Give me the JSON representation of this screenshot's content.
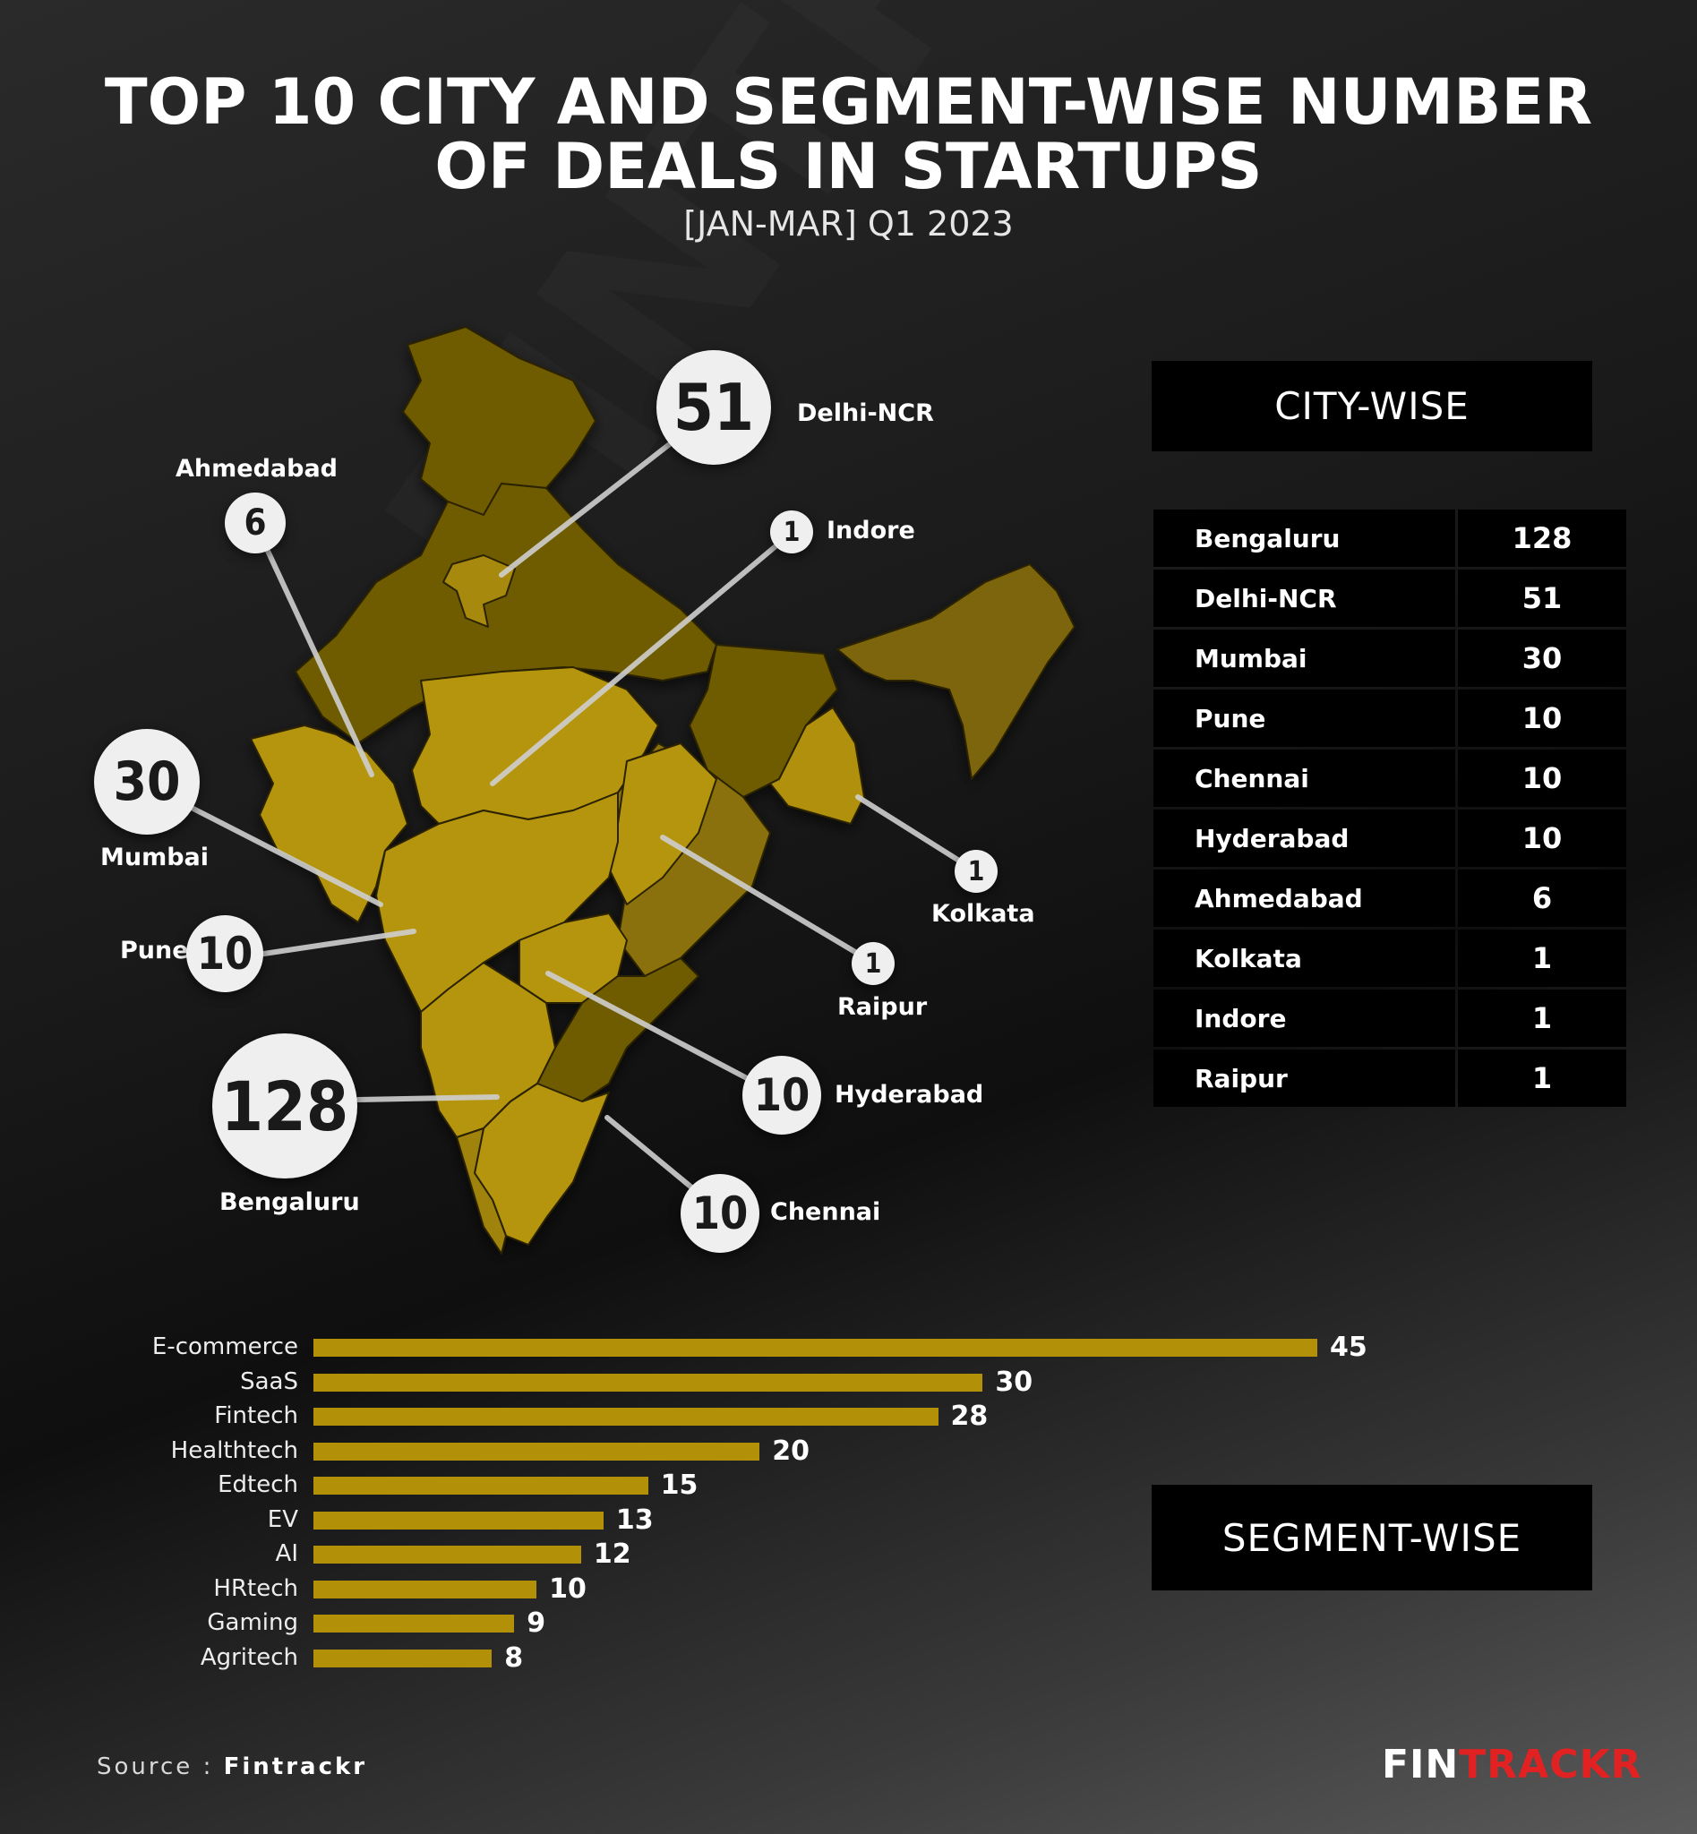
{
  "title_line1": "TOP 10 CITY AND SEGMENT-WISE NUMBER",
  "title_line2": "OF DEALS IN STARTUPS",
  "subtitle": "[JAN-MAR] Q1 2023",
  "city_header": "CITY-WISE",
  "segment_header": "SEGMENT-WISE",
  "source_prefix": "Source : ",
  "source_name": "Fintrackr",
  "logo_fin": "FIN",
  "logo_track": "TRACKR",
  "colors": {
    "accent": "#b29108",
    "logo_red": "#e22222",
    "box": "#000000"
  },
  "chart_data": [
    {
      "type": "map",
      "cities": [
        {
          "name": "Delhi-NCR",
          "value": 51
        },
        {
          "name": "Ahmedabad",
          "value": 6
        },
        {
          "name": "Indore",
          "value": 1
        },
        {
          "name": "Mumbai",
          "value": 30
        },
        {
          "name": "Pune",
          "value": 10
        },
        {
          "name": "Kolkata",
          "value": 1
        },
        {
          "name": "Raipur",
          "value": 1
        },
        {
          "name": "Bengaluru",
          "value": 128
        },
        {
          "name": "Hyderabad",
          "value": 10
        },
        {
          "name": "Chennai",
          "value": 10
        }
      ]
    },
    {
      "type": "table",
      "title": "CITY-WISE",
      "rows": [
        {
          "name": "Bengaluru",
          "value": "128"
        },
        {
          "name": "Delhi-NCR",
          "value": "51"
        },
        {
          "name": "Mumbai",
          "value": "30"
        },
        {
          "name": "Pune",
          "value": "10"
        },
        {
          "name": "Chennai",
          "value": "10"
        },
        {
          "name": "Hyderabad",
          "value": "10"
        },
        {
          "name": "Ahmedabad",
          "value": "6"
        },
        {
          "name": "Kolkata",
          "value": "1"
        },
        {
          "name": "Indore",
          "value": "1"
        },
        {
          "name": "Raipur",
          "value": "1"
        }
      ]
    },
    {
      "type": "bar",
      "title": "SEGMENT-WISE",
      "orientation": "horizontal",
      "categories": [
        "E-commerce",
        "SaaS",
        "Fintech",
        "Healthtech",
        "Edtech",
        "EV",
        "AI",
        "HRtech",
        "Gaming",
        "Agritech"
      ],
      "values": [
        45,
        30,
        28,
        20,
        15,
        13,
        12,
        10,
        9,
        8
      ]
    }
  ]
}
